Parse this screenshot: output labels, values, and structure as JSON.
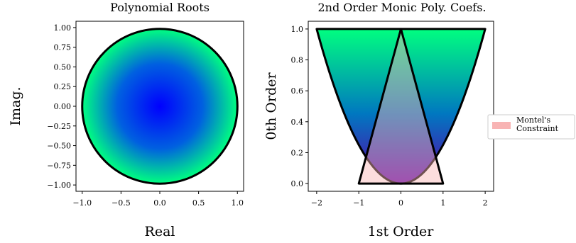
{
  "chart_data": [
    {
      "type": "heatmap",
      "title": "Polynomial Roots",
      "xlabel": "Real",
      "ylabel": "Imag.",
      "xlim": [
        -1.08,
        1.08
      ],
      "ylim": [
        -1.08,
        1.08
      ],
      "xticks": [
        -1.0,
        -0.5,
        0.0,
        0.5,
        1.0
      ],
      "xtick_labels": [
        "−1.0",
        "−0.5",
        "0.0",
        "0.5",
        "1.0"
      ],
      "yticks": [
        1.0,
        0.75,
        0.5,
        0.25,
        0.0,
        -0.25,
        -0.5,
        -0.75,
        -1.0
      ],
      "ytick_labels": [
        "1.00",
        "0.75",
        "0.50",
        "0.25",
        "0.00",
        "−0.25",
        "−0.50",
        "−0.75",
        "−1.00"
      ],
      "region": {
        "shape": "unit-disk",
        "radius": 1.0,
        "center": [
          0,
          0
        ]
      },
      "colors": {
        "center": "#0000ff",
        "edge": "#00ff80",
        "outline": "#000000"
      },
      "grid": false
    },
    {
      "type": "area",
      "title": "2nd Order Monic Poly. Coefs.",
      "xlabel": "1st Order",
      "ylabel": "0th Order",
      "xlim": [
        -2.2,
        2.2
      ],
      "ylim": [
        -0.05,
        1.05
      ],
      "xticks": [
        -2,
        -1,
        0,
        1,
        2
      ],
      "xtick_labels": [
        "−2",
        "−1",
        "0",
        "1",
        "2"
      ],
      "yticks": [
        1.0,
        0.8,
        0.6,
        0.4,
        0.2,
        0.0
      ],
      "ytick_labels": [
        "1.0",
        "0.8",
        "0.6",
        "0.4",
        "0.2",
        "0.0"
      ],
      "region_boundary": {
        "lower": "y = x^2 / 4",
        "upper": "y = 1",
        "x_range": [
          -2,
          2
        ]
      },
      "triangle": {
        "vertices": [
          [
            -1,
            0
          ],
          [
            1,
            0
          ],
          [
            0,
            1
          ]
        ]
      },
      "legend": {
        "entries": [
          "Montel's\nConstraint"
        ],
        "placement": "outside-right",
        "swatch_color": "#f8b4b4"
      },
      "colors": {
        "low": "#5b00ab",
        "high": "#00ff80",
        "outline": "#000000"
      },
      "grid": false
    }
  ]
}
